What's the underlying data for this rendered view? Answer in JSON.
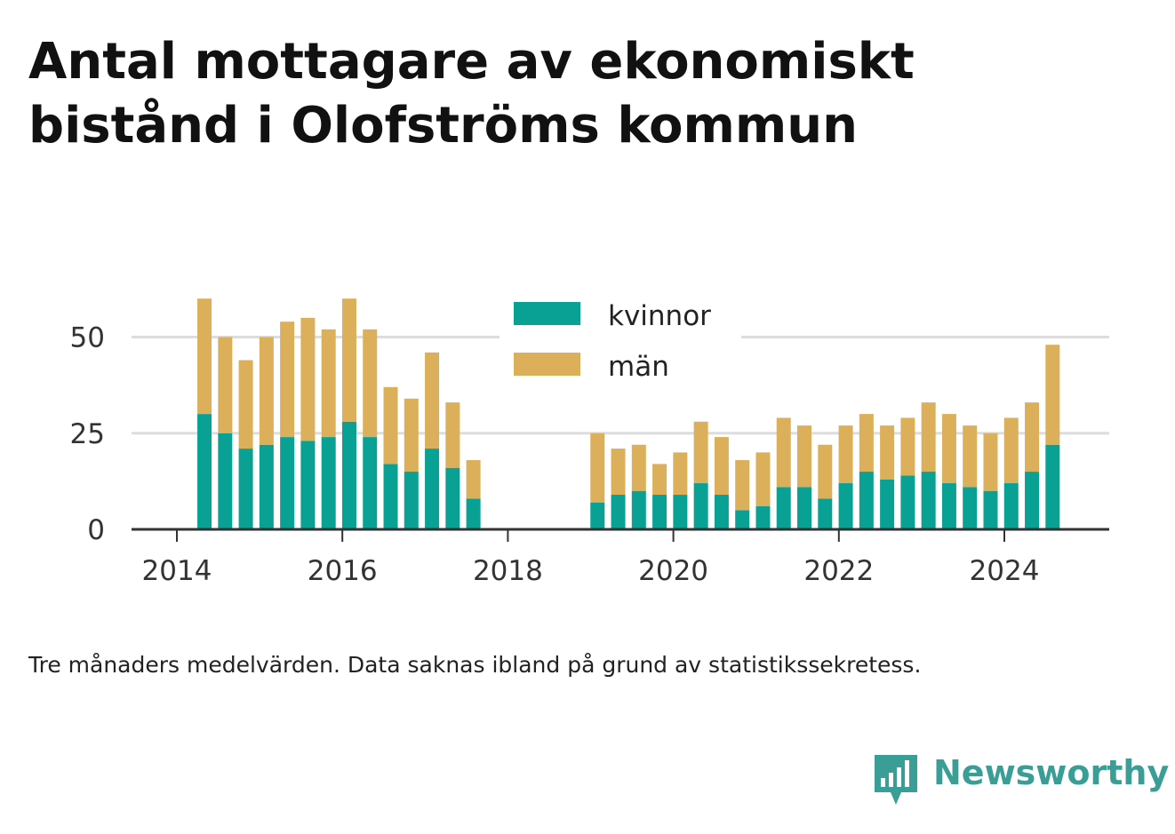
{
  "title_lines": [
    "Antal mottagare av ekonomiskt",
    "bistånd i Olofströms kommun"
  ],
  "footnote": "Tre månaders medelvärden. Data saknas ibland på grund av statistikssekretess.",
  "brand": {
    "name": "Newsworthy",
    "icon": "newsworthy-logo-icon"
  },
  "colors": {
    "kvinnor": "#0aa195",
    "man": "#dcaf5b",
    "grid": "#dddddd",
    "axis": "#333333"
  },
  "chart_data": {
    "type": "bar",
    "stacked": true,
    "x_ticks": [
      "2014",
      "2016",
      "2018",
      "2020",
      "2022",
      "2024"
    ],
    "y_ticks": [
      "0",
      "25",
      "50"
    ],
    "ylim": [
      0,
      60
    ],
    "grid": "horizontal",
    "legend": {
      "placement": "top-center",
      "entries": [
        "kvinnor",
        "män"
      ]
    },
    "x": [
      "2014-05",
      "2014-08",
      "2014-11",
      "2015-02",
      "2015-05",
      "2015-08",
      "2015-11",
      "2016-02",
      "2016-05",
      "2016-08",
      "2016-11",
      "2017-02",
      "2017-05",
      "2017-08",
      "2019-02",
      "2019-05",
      "2019-08",
      "2019-11",
      "2020-02",
      "2020-05",
      "2020-08",
      "2020-11",
      "2021-02",
      "2021-05",
      "2021-08",
      "2021-11",
      "2022-02",
      "2022-05",
      "2022-08",
      "2022-11",
      "2023-02",
      "2023-05",
      "2023-08",
      "2023-11",
      "2024-02",
      "2024-05",
      "2024-08"
    ],
    "series": [
      {
        "name": "kvinnor",
        "values": [
          30,
          25,
          21,
          22,
          24,
          23,
          24,
          28,
          24,
          17,
          15,
          21,
          16,
          8,
          7,
          9,
          10,
          9,
          9,
          12,
          9,
          5,
          6,
          11,
          11,
          8,
          12,
          15,
          13,
          14,
          15,
          12,
          11,
          10,
          12,
          15,
          22
        ]
      },
      {
        "name": "män",
        "values": [
          30,
          25,
          23,
          28,
          30,
          32,
          28,
          32,
          28,
          20,
          19,
          25,
          17,
          10,
          18,
          12,
          12,
          8,
          11,
          16,
          15,
          13,
          14,
          18,
          16,
          14,
          15,
          15,
          14,
          15,
          18,
          18,
          16,
          15,
          17,
          18,
          26
        ]
      }
    ]
  }
}
